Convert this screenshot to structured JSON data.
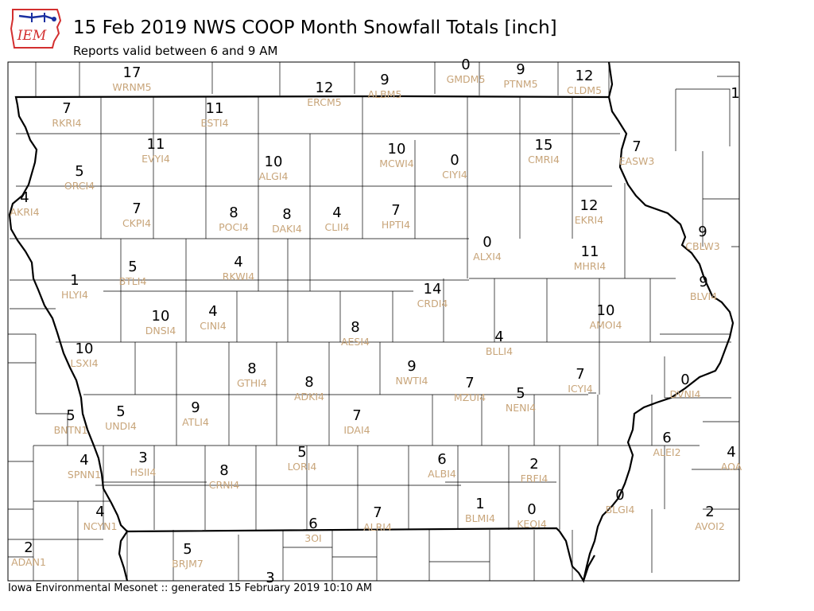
{
  "header": {
    "logo_text": "IEM",
    "title": "15 Feb 2019 NWS COOP Month Snowfall Totals [inch]",
    "subtitle": "Reports valid between 6 and 9 AM"
  },
  "footer": {
    "text": "Iowa Environmental Mesonet :: generated 15 February 2019 10:10 AM"
  },
  "colors": {
    "value_text": "#000000",
    "station_id_text": "#c8a57a",
    "logo_red": "#d32f2f",
    "logo_blue": "#1a2fa0"
  },
  "stations": [
    {
      "id": "WRNM5",
      "value": "17"
    },
    {
      "id": "GMDM5",
      "value": "0"
    },
    {
      "id": "PTNM5",
      "value": "9"
    },
    {
      "id": "CLDM5",
      "value": "12"
    },
    {
      "id": "ERCM5",
      "value": "12"
    },
    {
      "id": "ALBM5",
      "value": "9"
    },
    {
      "id": "",
      "value": "1"
    },
    {
      "id": "RKRI4",
      "value": "7"
    },
    {
      "id": "ESTI4",
      "value": "11"
    },
    {
      "id": "EVYI4",
      "value": "11"
    },
    {
      "id": "ORCI4",
      "value": "5"
    },
    {
      "id": "ALGI4",
      "value": "10"
    },
    {
      "id": "MCWI4",
      "value": "10"
    },
    {
      "id": "CIYI4",
      "value": "0"
    },
    {
      "id": "CMRI4",
      "value": "15"
    },
    {
      "id": "EASW3",
      "value": "7"
    },
    {
      "id": "AKRI4",
      "value": "4"
    },
    {
      "id": "CKPI4",
      "value": "7"
    },
    {
      "id": "POCI4",
      "value": "8"
    },
    {
      "id": "DAKI4",
      "value": "8"
    },
    {
      "id": "CLII4",
      "value": "4"
    },
    {
      "id": "HPTI4",
      "value": "7"
    },
    {
      "id": "EKRI4",
      "value": "12"
    },
    {
      "id": "CBLW3",
      "value": "9"
    },
    {
      "id": "ALXI4",
      "value": "0"
    },
    {
      "id": "MHRI4",
      "value": "11"
    },
    {
      "id": "BTLI4",
      "value": "5"
    },
    {
      "id": "RKWI4",
      "value": "4"
    },
    {
      "id": "HLYI4",
      "value": "1"
    },
    {
      "id": "CRDI4",
      "value": "14"
    },
    {
      "id": "BLVI4",
      "value": "9"
    },
    {
      "id": "DNSI4",
      "value": "10"
    },
    {
      "id": "CINI4",
      "value": "4"
    },
    {
      "id": "AMOI4",
      "value": "10"
    },
    {
      "id": "AESI4",
      "value": "8"
    },
    {
      "id": "BLLI4",
      "value": "4"
    },
    {
      "id": "LSXI4",
      "value": "10"
    },
    {
      "id": "GTHI4",
      "value": "8"
    },
    {
      "id": "ADKI4",
      "value": "8"
    },
    {
      "id": "NWTI4",
      "value": "9"
    },
    {
      "id": "MZUI4",
      "value": "7"
    },
    {
      "id": "ICYI4",
      "value": "7"
    },
    {
      "id": "DVNI4",
      "value": "0"
    },
    {
      "id": "NENI4",
      "value": "5"
    },
    {
      "id": "BNTN1",
      "value": "5"
    },
    {
      "id": "UNDI4",
      "value": "5"
    },
    {
      "id": "ATLI4",
      "value": "9"
    },
    {
      "id": "IDAI4",
      "value": "7"
    },
    {
      "id": "ALEI2",
      "value": "6"
    },
    {
      "id": "AOA",
      "value": "4"
    },
    {
      "id": "SPNN1",
      "value": "4"
    },
    {
      "id": "HSII4",
      "value": "3"
    },
    {
      "id": "CRNI4",
      "value": "8"
    },
    {
      "id": "LORI4",
      "value": "5"
    },
    {
      "id": "ALBI4",
      "value": "6"
    },
    {
      "id": "FRFI4",
      "value": "2"
    },
    {
      "id": "NCYN1",
      "value": "4"
    },
    {
      "id": "BLMI4",
      "value": "1"
    },
    {
      "id": "KEOI4",
      "value": "0"
    },
    {
      "id": "BLGI4",
      "value": "0"
    },
    {
      "id": "AVOI2",
      "value": "2"
    },
    {
      "id": "3OI",
      "value": "6"
    },
    {
      "id": "ALRI4",
      "value": "7"
    },
    {
      "id": "ADAN1",
      "value": "2"
    },
    {
      "id": "BRJM7",
      "value": "5"
    },
    {
      "id": "",
      "value": "3"
    }
  ]
}
